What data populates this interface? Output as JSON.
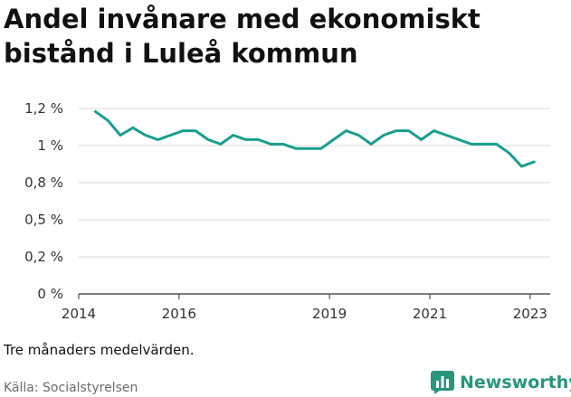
{
  "title": "Andel invånare med ekonomiskt bistånd i Luleå kommun",
  "note": "Tre månaders medelvärden.",
  "source": "Källa: Socialstyrelsen",
  "brand": {
    "name": "Newsworthy",
    "icon": "bar-chart-icon",
    "color": "#27967c"
  },
  "chart_data": {
    "type": "line",
    "title": "Andel invånare med ekonomiskt bistånd i Luleå kommun",
    "xlabel": "",
    "ylabel": "",
    "x_ticks": [
      2014,
      2016,
      2019,
      2021,
      2023
    ],
    "y_ticks": [
      {
        "value": 0,
        "label": "0 %"
      },
      {
        "value": 0.25,
        "label": "0,2 %"
      },
      {
        "value": 0.5,
        "label": "0,5 %"
      },
      {
        "value": 0.75,
        "label": "0,8 %"
      },
      {
        "value": 1.0,
        "label": "1 %"
      },
      {
        "value": 1.25,
        "label": "1,2 %"
      }
    ],
    "xlim": [
      2014,
      2023.4
    ],
    "ylim": [
      0,
      1.25
    ],
    "grid": true,
    "series": [
      {
        "color": "#1a9e8f",
        "x": [
          2014.33,
          2014.58,
          2014.83,
          2015.08,
          2015.33,
          2015.58,
          2015.83,
          2016.08,
          2016.33,
          2016.58,
          2016.83,
          2017.08,
          2017.33,
          2017.58,
          2017.83,
          2018.08,
          2018.33,
          2018.58,
          2018.83,
          2019.08,
          2019.33,
          2019.58,
          2019.83,
          2020.08,
          2020.33,
          2020.58,
          2020.83,
          2021.08,
          2021.33,
          2021.58,
          2021.83,
          2022.08,
          2022.33,
          2022.58,
          2022.83,
          2023.08
        ],
        "values": [
          1.23,
          1.17,
          1.07,
          1.12,
          1.07,
          1.04,
          1.07,
          1.1,
          1.1,
          1.04,
          1.01,
          1.07,
          1.04,
          1.04,
          1.01,
          1.01,
          0.98,
          0.98,
          0.98,
          1.04,
          1.1,
          1.07,
          1.01,
          1.07,
          1.1,
          1.1,
          1.04,
          1.1,
          1.07,
          1.04,
          1.01,
          1.01,
          1.01,
          0.95,
          0.86,
          0.89
        ]
      }
    ]
  }
}
